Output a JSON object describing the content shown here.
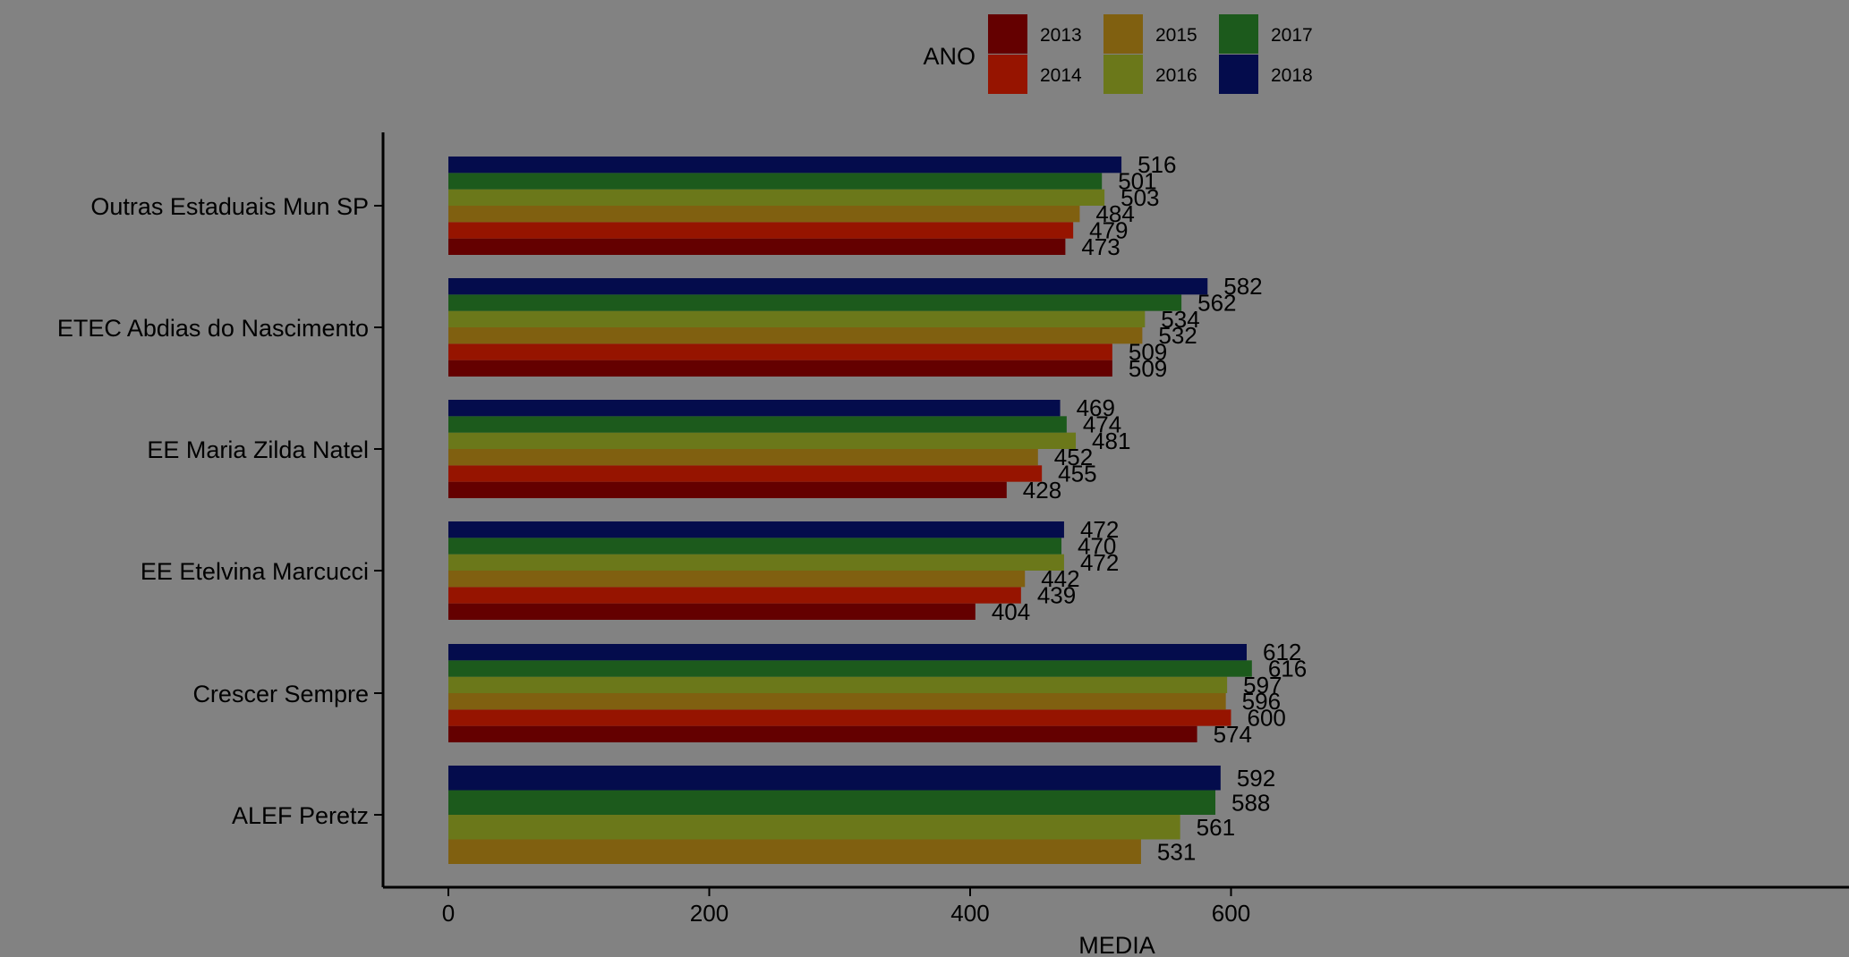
{
  "chart_data": {
    "type": "bar",
    "orientation": "horizontal",
    "title": "",
    "xlabel": "MEDIA",
    "ylabel": "",
    "xlim": [
      0,
      640
    ],
    "xticks": [
      0,
      200,
      400,
      600
    ],
    "grid": false,
    "legend": {
      "title": "ANO",
      "placement": "top",
      "columns": 3
    },
    "categories": [
      "Outras Estaduais Mun SP",
      "ETEC Abdias do Nascimento",
      "EE Maria Zilda Natel",
      "EE Etelvina Marcucci",
      "Crescer Sempre",
      "ALEF Peretz"
    ],
    "series": [
      {
        "name": "2013",
        "color": "#640000",
        "values": [
          473,
          509,
          428,
          404,
          574,
          null
        ]
      },
      {
        "name": "2014",
        "color": "#961400",
        "values": [
          479,
          509,
          455,
          439,
          600,
          null
        ]
      },
      {
        "name": "2015",
        "color": "#806010",
        "values": [
          484,
          532,
          452,
          442,
          596,
          531
        ]
      },
      {
        "name": "2016",
        "color": "#6b781a",
        "values": [
          503,
          534,
          481,
          472,
          597,
          561
        ]
      },
      {
        "name": "2017",
        "color": "#1c5a1c",
        "values": [
          501,
          562,
          474,
          470,
          616,
          588
        ]
      },
      {
        "name": "2018",
        "color": "#040c4c",
        "values": [
          516,
          582,
          469,
          472,
          612,
          592
        ]
      }
    ]
  }
}
